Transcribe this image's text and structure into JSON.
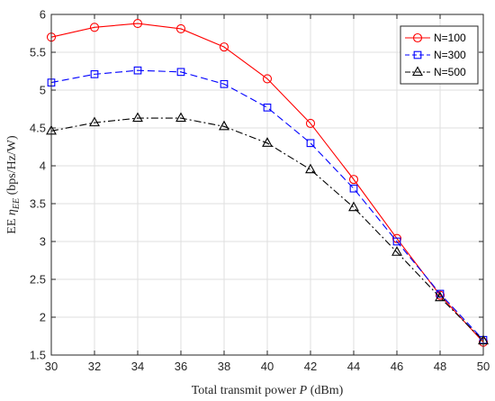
{
  "chart_data": {
    "type": "line",
    "title": "",
    "xlabel": "Total transmit power P (dBm)",
    "xlabel_parts": {
      "prefix": "Total transmit power ",
      "var": "P",
      "suffix": " (dBm)"
    },
    "ylabel": "EE η_EE (bps/Hz/W)",
    "ylabel_parts": {
      "prefix": "EE ",
      "var": "η",
      "sub": "EE",
      "suffix": " (bps/Hz/W)"
    },
    "xlim": [
      30,
      50
    ],
    "ylim": [
      1.5,
      6
    ],
    "xticks": [
      30,
      32,
      34,
      36,
      38,
      40,
      42,
      44,
      46,
      48,
      50
    ],
    "yticks": [
      1.5,
      2,
      2.5,
      3,
      3.5,
      4,
      4.5,
      5,
      5.5,
      6
    ],
    "ytick_labels": [
      "1.5",
      "2",
      "2.5",
      "3",
      "3.5",
      "4",
      "4.5",
      "5",
      "5.5",
      "6"
    ],
    "grid": true,
    "legend_position": "top-right",
    "x": [
      30,
      32,
      34,
      36,
      38,
      40,
      42,
      44,
      46,
      48,
      50
    ],
    "series": [
      {
        "name": "N=100",
        "color": "#ff0000",
        "marker": "circle",
        "dash": "solid",
        "values": [
          5.7,
          5.83,
          5.88,
          5.81,
          5.57,
          5.15,
          4.56,
          3.82,
          3.04,
          2.29,
          1.67
        ]
      },
      {
        "name": "N=300",
        "color": "#0000ff",
        "marker": "square",
        "dash": "dashed",
        "values": [
          5.1,
          5.21,
          5.26,
          5.24,
          5.08,
          4.77,
          4.3,
          3.7,
          3.0,
          2.31,
          1.7
        ]
      },
      {
        "name": "N=500",
        "color": "#000000",
        "marker": "triangle",
        "dash": "dashdot",
        "values": [
          4.46,
          4.57,
          4.63,
          4.63,
          4.52,
          4.3,
          3.95,
          3.45,
          2.86,
          2.26,
          1.69
        ]
      }
    ]
  }
}
